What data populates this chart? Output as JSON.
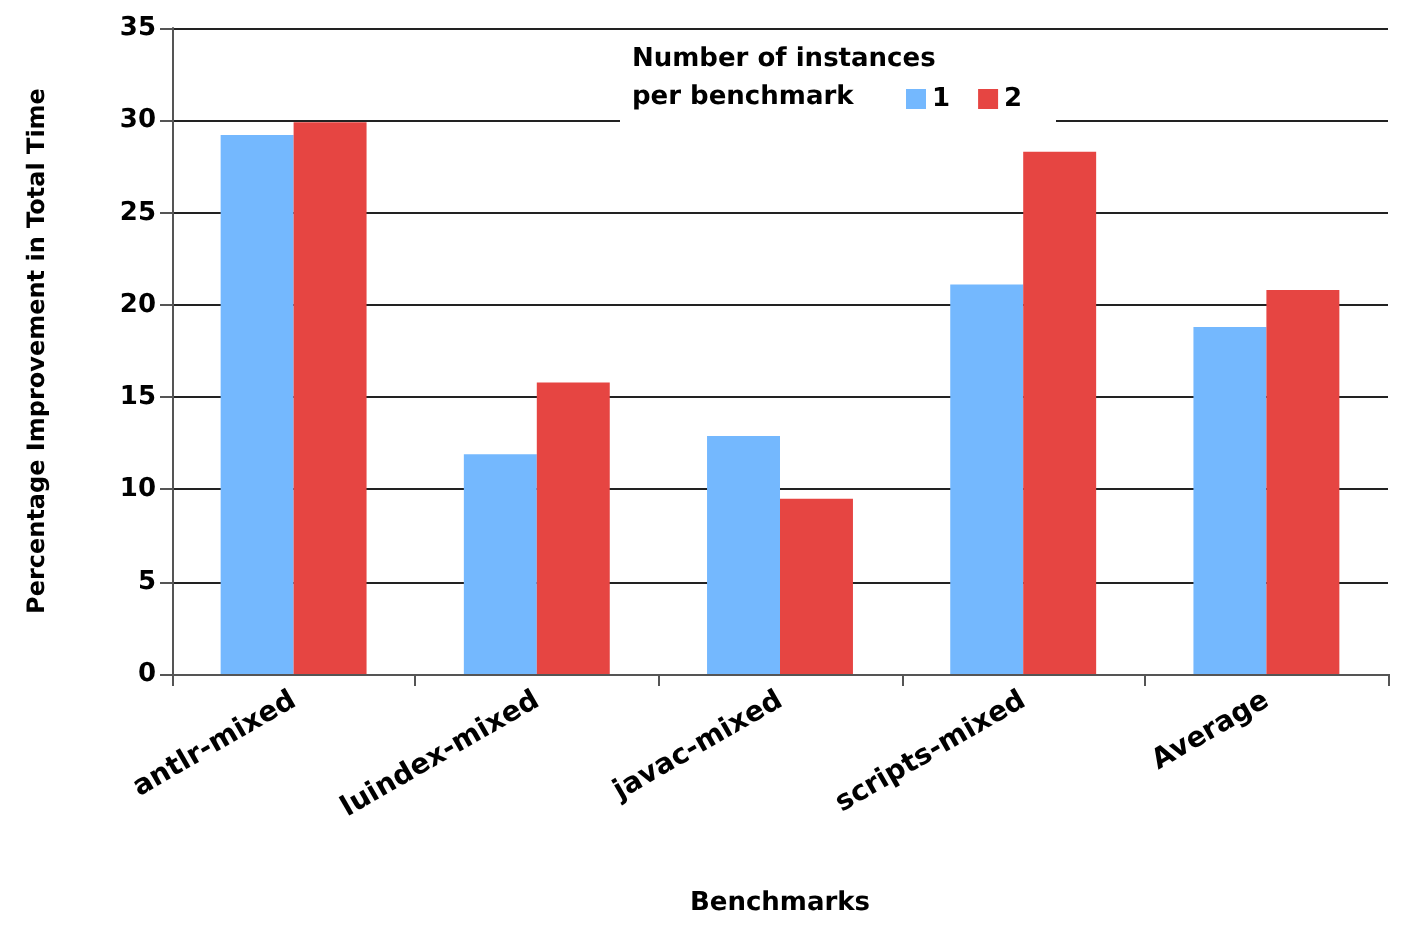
{
  "chart_data": {
    "type": "bar",
    "xlabel": "Benchmarks",
    "ylabel": "Percentage Improvement in Total Time",
    "legend_title": "Number of instances\nper benchmark",
    "categories": [
      "antlr-mixed",
      "luindex-mixed",
      "javac-mixed",
      "scripts-mixed",
      "Average"
    ],
    "series": [
      {
        "name": "1",
        "color": "#74b8fe",
        "values": [
          29.2,
          11.9,
          12.9,
          21.1,
          18.8
        ]
      },
      {
        "name": "2",
        "color": "#e64542",
        "values": [
          29.9,
          15.8,
          9.5,
          28.3,
          20.8
        ]
      }
    ],
    "ylim": [
      0,
      35
    ],
    "yticks": [
      0,
      5,
      10,
      15,
      20,
      25,
      30,
      35
    ],
    "grid": "y",
    "legend": "top"
  }
}
